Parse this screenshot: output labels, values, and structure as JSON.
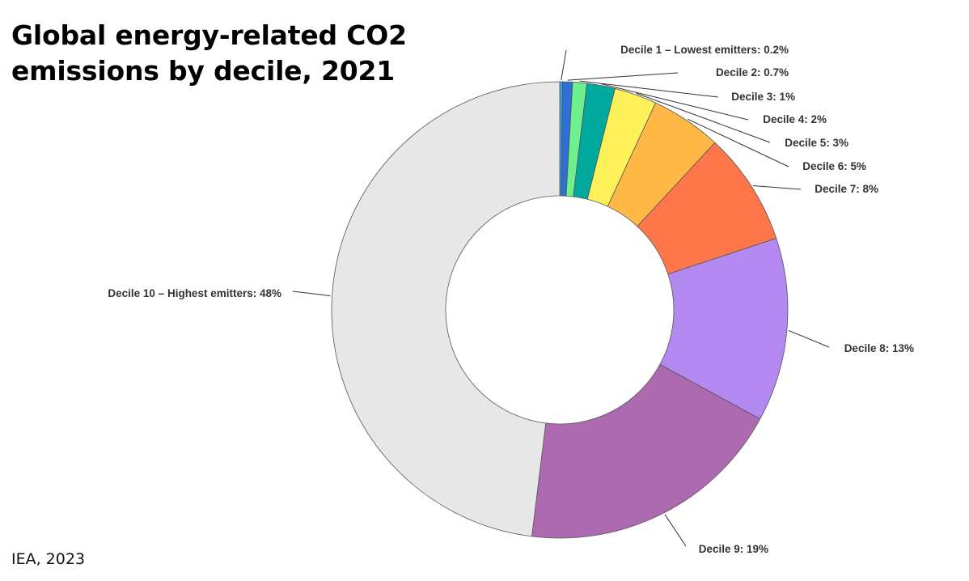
{
  "title_lines": [
    "Global energy-related CO2",
    "emissions by decile, 2021"
  ],
  "source": "IEA, 2023",
  "chart_data": {
    "type": "pie",
    "variant": "donut",
    "title": "Global energy-related CO2 emissions by decile, 2021",
    "slices": [
      {
        "label": "Decile 1 – Lowest emitters: 0.2%",
        "value": 0.2,
        "color": "#3aa0ef"
      },
      {
        "label": "Decile 2: 0.7%",
        "value": 0.7,
        "color": "#2e6fd6"
      },
      {
        "label": "Decile 3: 1%",
        "value": 1,
        "color": "#6ff08f"
      },
      {
        "label": "Decile 4: 2%",
        "value": 2,
        "color": "#00a99d"
      },
      {
        "label": "Decile 5: 3%",
        "value": 3,
        "color": "#fef15a"
      },
      {
        "label": "Decile 6: 5%",
        "value": 5,
        "color": "#ffb845"
      },
      {
        "label": "Decile 7: 8%",
        "value": 8,
        "color": "#ff764a"
      },
      {
        "label": "Decile 8: 13%",
        "value": 13,
        "color": "#b388f0"
      },
      {
        "label": "Decile 9: 19%",
        "value": 19,
        "color": "#ad6ab0"
      },
      {
        "label": "Decile 10 – Highest emitters: 48%",
        "value": 48,
        "color": "#e7e7e7"
      }
    ]
  }
}
